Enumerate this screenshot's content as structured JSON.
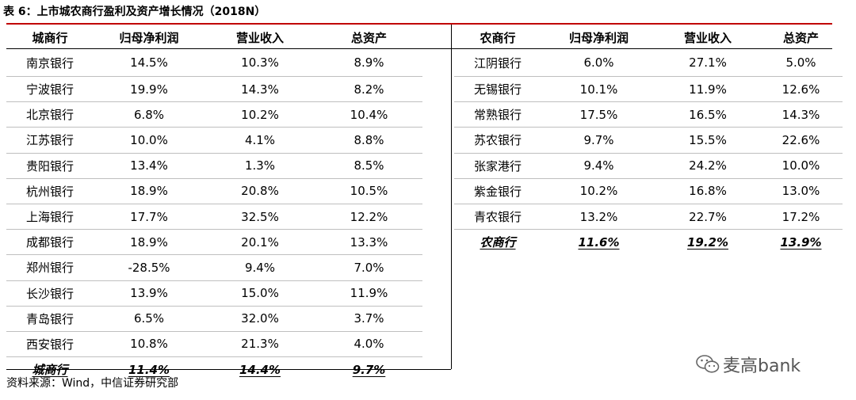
{
  "title": "表 6：上市城农商行盈利及资产增长情况（2018N）",
  "left": {
    "headers": [
      "城商行",
      "归母净利润",
      "营业收入",
      "总资产"
    ],
    "rows": [
      [
        "南京银行",
        "14.5%",
        "10.3%",
        "8.9%"
      ],
      [
        "宁波银行",
        "19.9%",
        "14.3%",
        "8.2%"
      ],
      [
        "北京银行",
        "6.8%",
        "10.2%",
        "10.4%"
      ],
      [
        "江苏银行",
        "10.0%",
        "4.1%",
        "8.8%"
      ],
      [
        "贵阳银行",
        "13.4%",
        "1.3%",
        "8.5%"
      ],
      [
        "杭州银行",
        "18.9%",
        "20.8%",
        "10.5%"
      ],
      [
        "上海银行",
        "17.7%",
        "32.5%",
        "12.2%"
      ],
      [
        "成都银行",
        "18.9%",
        "20.1%",
        "13.3%"
      ],
      [
        "郑州银行",
        "-28.5%",
        "9.4%",
        "7.0%"
      ],
      [
        "长沙银行",
        "13.9%",
        "15.0%",
        "11.9%"
      ],
      [
        "青岛银行",
        "6.5%",
        "32.0%",
        "3.7%"
      ],
      [
        "西安银行",
        "10.8%",
        "21.3%",
        "4.0%"
      ]
    ],
    "summary": [
      "城商行",
      "11.4%",
      "14.4%",
      "9.7%"
    ]
  },
  "right": {
    "headers": [
      "农商行",
      "归母净利润",
      "营业收入",
      "总资产"
    ],
    "rows": [
      [
        "江阴银行",
        "6.0%",
        "27.1%",
        "5.0%"
      ],
      [
        "无锡银行",
        "10.1%",
        "11.9%",
        "12.6%"
      ],
      [
        "常熟银行",
        "17.5%",
        "16.5%",
        "14.3%"
      ],
      [
        "苏农银行",
        "9.7%",
        "15.5%",
        "22.6%"
      ],
      [
        "张家港行",
        "9.4%",
        "24.2%",
        "10.0%"
      ],
      [
        "紫金银行",
        "10.2%",
        "16.8%",
        "13.0%"
      ],
      [
        "青农银行",
        "13.2%",
        "22.7%",
        "17.2%"
      ]
    ],
    "summary": [
      "农商行",
      "11.6%",
      "19.2%",
      "13.9%"
    ]
  },
  "source": "资料来源：Wind，中信证券研究部",
  "watermark": "麦高bank",
  "colors": {
    "accent": "#c00000",
    "separator": "#bfbfbf"
  }
}
